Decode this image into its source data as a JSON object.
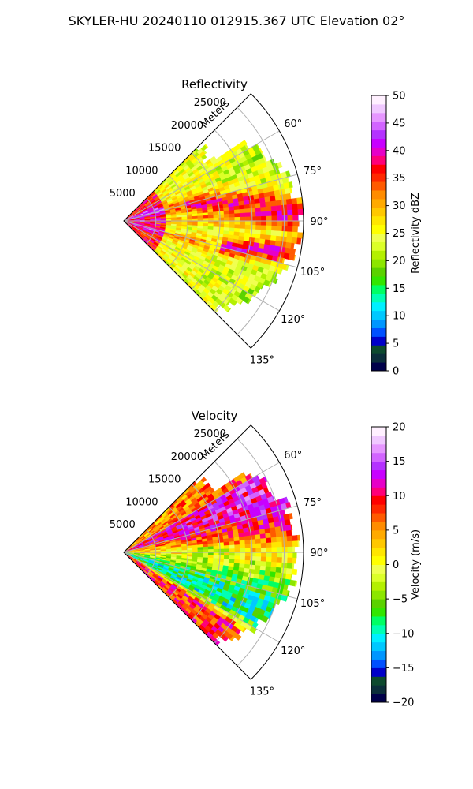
{
  "figure": {
    "suptitle": "SKYLER-HU  20240110  012915.367 UTC Elevation 02°"
  },
  "chart_data": [
    {
      "type": "heatmap",
      "projection": "polar-sector",
      "title": "Reflectivity",
      "radial_label": "Meters",
      "radial_ticks": [
        5000,
        10000,
        15000,
        20000,
        25000
      ],
      "radial_tick_labels": [
        "5000",
        "10000",
        "15000",
        "20000",
        "25000"
      ],
      "rlim": [
        0,
        28000
      ],
      "azimuth_ticks": [
        60,
        75,
        90,
        105,
        120,
        135
      ],
      "azimuth_tick_labels": [
        "60°",
        "75°",
        "90°",
        "105°",
        "120°",
        "135°"
      ],
      "azimuth_range_deg": [
        45,
        135
      ],
      "grid": true,
      "colorbar": {
        "label": "Reflectivity dBZ",
        "range": [
          0,
          50
        ],
        "ticks": [
          0,
          5,
          10,
          15,
          20,
          25,
          30,
          35,
          40,
          45,
          50
        ],
        "tick_labels": [
          "0",
          "5",
          "10",
          "15",
          "20",
          "25",
          "30",
          "35",
          "40",
          "45",
          "50"
        ],
        "colors": [
          "#00004a",
          "#0b2e3a",
          "#0d4a2e",
          "#0000c8",
          "#0050ff",
          "#0096ff",
          "#00c8ff",
          "#00f0ff",
          "#00ffb4",
          "#00ff64",
          "#32e600",
          "#5ad200",
          "#8ce600",
          "#b4f000",
          "#dcff28",
          "#f0ff50",
          "#ffff00",
          "#ffe600",
          "#ffc800",
          "#ffaa00",
          "#ff8c00",
          "#ff5a00",
          "#ff2800",
          "#ff0000",
          "#ff0078",
          "#e600c8",
          "#c800ff",
          "#b432ff",
          "#d264ff",
          "#e696ff",
          "#f0c8ff",
          "#fff0ff"
        ]
      }
    },
    {
      "type": "heatmap",
      "projection": "polar-sector",
      "title": "Velocity",
      "radial_label": "Meters",
      "radial_ticks": [
        5000,
        10000,
        15000,
        20000,
        25000
      ],
      "radial_tick_labels": [
        "5000",
        "10000",
        "15000",
        "20000",
        "25000"
      ],
      "rlim": [
        0,
        28000
      ],
      "azimuth_ticks": [
        60,
        75,
        90,
        105,
        120,
        135
      ],
      "azimuth_tick_labels": [
        "60°",
        "75°",
        "90°",
        "105°",
        "120°",
        "135°"
      ],
      "azimuth_range_deg": [
        45,
        135
      ],
      "grid": true,
      "colorbar": {
        "label": "Velocity (m/s)",
        "range": [
          -20,
          20
        ],
        "ticks": [
          -20,
          -15,
          -10,
          -5,
          0,
          5,
          10,
          15,
          20
        ],
        "tick_labels": [
          "−20",
          "−15",
          "−10",
          "−5",
          "0",
          "5",
          "10",
          "15",
          "20"
        ],
        "colors": [
          "#00004a",
          "#0b2e3a",
          "#0d4a2e",
          "#0000c8",
          "#0050ff",
          "#0096ff",
          "#00c8ff",
          "#00f0ff",
          "#00ffb4",
          "#00ff64",
          "#32e600",
          "#5ad200",
          "#8ce600",
          "#b4f000",
          "#dcff28",
          "#f0ff50",
          "#ffff00",
          "#ffe600",
          "#ffc800",
          "#ffaa00",
          "#ff8c00",
          "#ff5a00",
          "#ff2800",
          "#ff0000",
          "#ff0078",
          "#e600c8",
          "#c800ff",
          "#b432ff",
          "#d264ff",
          "#e696ff",
          "#f0c8ff",
          "#fff0ff"
        ]
      }
    }
  ]
}
